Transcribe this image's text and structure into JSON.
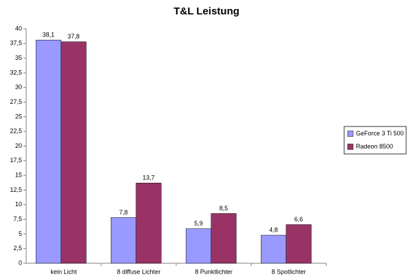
{
  "chart_data": {
    "type": "bar",
    "title": "T&L Leistung",
    "categories": [
      "kein Licht",
      "8 diffuse Lichter",
      "8 Punktlichter",
      "8 Spotlichter"
    ],
    "series": [
      {
        "name": "GeForce 3 Ti 500",
        "color": "#9999ff",
        "values": [
          38.1,
          7.8,
          5.9,
          4.8
        ],
        "value_labels": [
          "38,1",
          "7,8",
          "5,9",
          "4,8"
        ]
      },
      {
        "name": "Radeon 8500",
        "color": "#993366",
        "values": [
          37.8,
          13.7,
          8.5,
          6.6
        ],
        "value_labels": [
          "37,8",
          "13,7",
          "8,5",
          "6,6"
        ]
      }
    ],
    "ylim": [
      0,
      40
    ],
    "yticks": [
      0,
      {
        "value": 2.5,
        "label": "2,5"
      },
      5,
      {
        "value": 7.5,
        "label": "7,5"
      },
      10,
      {
        "value": 12.5,
        "label": "12,5"
      },
      15,
      {
        "value": 17.5,
        "label": "17,5"
      },
      20,
      {
        "value": 22.5,
        "label": "22,5"
      },
      25,
      {
        "value": 27.5,
        "label": "27,5"
      },
      30,
      {
        "value": 32.5,
        "label": "32,5"
      },
      35,
      {
        "value": 37.5,
        "label": "37,5"
      },
      40
    ],
    "grid": false,
    "legend": "right"
  }
}
